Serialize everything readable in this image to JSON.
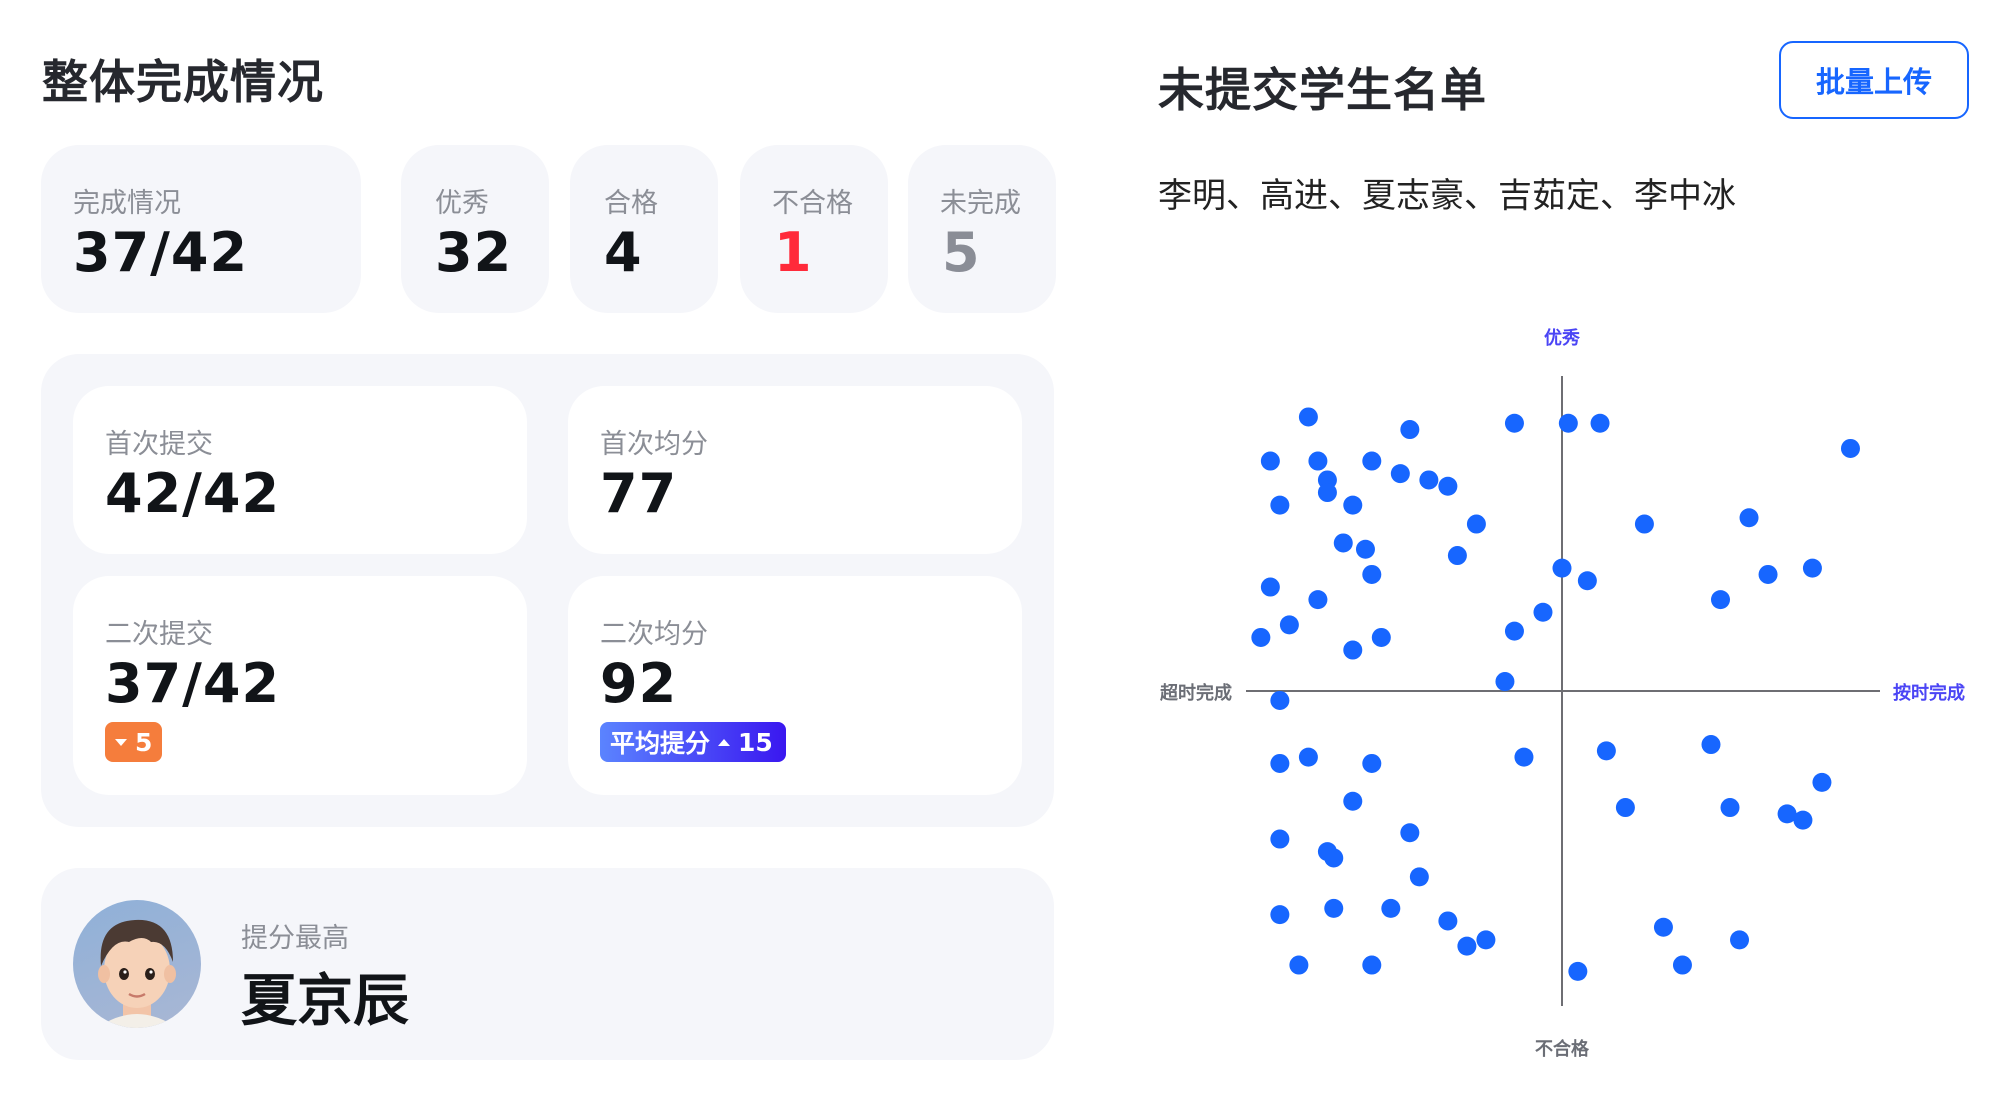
{
  "left": {
    "title": "整体完成情况",
    "stats": [
      {
        "label": "完成情况",
        "value": "37/42",
        "color": "#111418"
      },
      {
        "label": "优秀",
        "value": "32",
        "color": "#111418"
      },
      {
        "label": "合格",
        "value": "4",
        "color": "#111418"
      },
      {
        "label": "不合格",
        "value": "1",
        "color": "#ff2a3a"
      },
      {
        "label": "未完成",
        "value": "5",
        "color": "#8a8d96"
      }
    ],
    "submissions": {
      "first_submit": {
        "label": "首次提交",
        "value": "42/42"
      },
      "first_avg": {
        "label": "首次均分",
        "value": "77"
      },
      "second_submit": {
        "label": "二次提交",
        "value": "37/42",
        "badge": {
          "icon": "caret-down-icon",
          "value": "5",
          "color": "#f57d3c"
        }
      },
      "second_avg": {
        "label": "二次均分",
        "value": "92",
        "badge": {
          "label": "平均提分",
          "icon": "caret-up-icon",
          "value": "15",
          "color_from": "#5b84ff",
          "color_to": "#3a17f0"
        }
      }
    },
    "top_improver": {
      "label": "提分最高",
      "name": "夏京辰"
    }
  },
  "right": {
    "title": "未提交学生名单",
    "upload_button": "批量上传",
    "names": "李明、高进、夏志豪、吉茹定、李中冰"
  },
  "chart_data": {
    "type": "scatter",
    "axis_labels": {
      "top": "优秀",
      "bottom": "不合格",
      "left": "超时完成",
      "right": "按时完成"
    },
    "xlim": [
      -1,
      1
    ],
    "ylim": [
      -1,
      1
    ],
    "point_color": "#1766ff",
    "axis_label_colors": {
      "top": "#4b45f5",
      "right": "#4b45f5",
      "bottom": "#6b6e76",
      "left": "#6b6e76"
    },
    "points": [
      [
        -0.8,
        0.87
      ],
      [
        -0.48,
        0.83
      ],
      [
        -0.15,
        0.85
      ],
      [
        0.02,
        0.85
      ],
      [
        0.12,
        0.85
      ],
      [
        0.91,
        0.77
      ],
      [
        -0.92,
        0.73
      ],
      [
        -0.77,
        0.73
      ],
      [
        -0.6,
        0.73
      ],
      [
        -0.51,
        0.69
      ],
      [
        -0.42,
        0.67
      ],
      [
        -0.36,
        0.65
      ],
      [
        -0.74,
        0.67
      ],
      [
        -0.74,
        0.63
      ],
      [
        -0.89,
        0.59
      ],
      [
        -0.66,
        0.59
      ],
      [
        -0.27,
        0.53
      ],
      [
        0.26,
        0.53
      ],
      [
        0.59,
        0.55
      ],
      [
        -0.69,
        0.47
      ],
      [
        -0.62,
        0.45
      ],
      [
        -0.33,
        0.43
      ],
      [
        0.0,
        0.39
      ],
      [
        0.08,
        0.35
      ],
      [
        0.65,
        0.37
      ],
      [
        0.79,
        0.39
      ],
      [
        -0.6,
        0.37
      ],
      [
        -0.92,
        0.33
      ],
      [
        -0.77,
        0.29
      ],
      [
        0.5,
        0.29
      ],
      [
        -0.06,
        0.25
      ],
      [
        -0.86,
        0.21
      ],
      [
        -0.15,
        0.19
      ],
      [
        -0.95,
        0.17
      ],
      [
        -0.57,
        0.17
      ],
      [
        -0.66,
        0.13
      ],
      [
        -0.18,
        0.03
      ],
      [
        -0.89,
        -0.03
      ],
      [
        -0.89,
        -0.23
      ],
      [
        -0.8,
        -0.21
      ],
      [
        -0.6,
        -0.23
      ],
      [
        -0.12,
        -0.21
      ],
      [
        0.14,
        -0.19
      ],
      [
        0.47,
        -0.17
      ],
      [
        0.82,
        -0.29
      ],
      [
        -0.66,
        -0.35
      ],
      [
        0.2,
        -0.37
      ],
      [
        0.53,
        -0.37
      ],
      [
        0.71,
        -0.39
      ],
      [
        0.76,
        -0.41
      ],
      [
        -0.89,
        -0.47
      ],
      [
        -0.48,
        -0.45
      ],
      [
        -0.74,
        -0.51
      ],
      [
        -0.72,
        -0.53
      ],
      [
        -0.45,
        -0.59
      ],
      [
        -0.89,
        -0.71
      ],
      [
        -0.72,
        -0.69
      ],
      [
        -0.54,
        -0.69
      ],
      [
        -0.36,
        -0.73
      ],
      [
        -0.3,
        -0.81
      ],
      [
        -0.24,
        -0.79
      ],
      [
        0.32,
        -0.75
      ],
      [
        0.56,
        -0.79
      ],
      [
        -0.83,
        -0.87
      ],
      [
        -0.6,
        -0.87
      ],
      [
        0.38,
        -0.87
      ],
      [
        0.05,
        -0.89
      ]
    ]
  }
}
